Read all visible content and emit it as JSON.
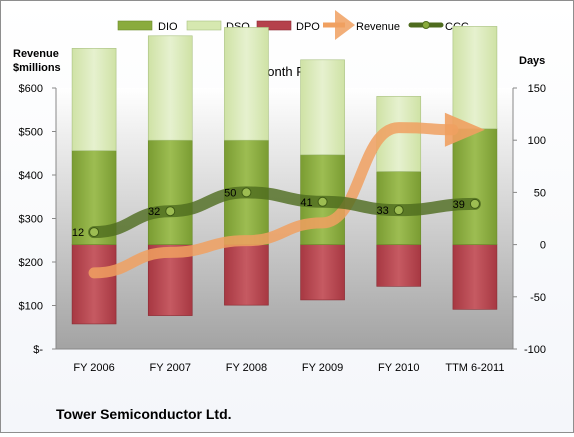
{
  "chart_data": {
    "type": "bar",
    "title": "12-Month Periods",
    "footer": "Tower Semiconductor Ltd.",
    "left_axis_label_line1": "Revenue",
    "left_axis_label_line2": "$millions",
    "right_axis_label": "Days",
    "left_ticks": [
      "$-",
      "$100",
      "$200",
      "$300",
      "$400",
      "$500",
      "$600"
    ],
    "right_ticks": [
      "-100",
      "-50",
      "0",
      "50",
      "100",
      "150"
    ],
    "categories": [
      "FY 2006",
      "FY 2007",
      "FY 2008",
      "FY 2009",
      "FY 2010",
      "TTM 6-2011"
    ],
    "left_ylim": [
      0,
      600
    ],
    "right_ylim": [
      -100,
      150
    ],
    "legend": [
      "DIO",
      "DSO",
      "DPO",
      "Revenue",
      "CCC"
    ],
    "legend_position": "top",
    "grid": false,
    "series": [
      {
        "name": "DIO",
        "axis": "right",
        "values": [
          0,
          0,
          0,
          0,
          0,
          0
        ]
      },
      {
        "name": "DSO",
        "axis": "right",
        "values": [
          0,
          0,
          0,
          0,
          0,
          0
        ]
      },
      {
        "name": "DPO",
        "axis": "right",
        "values": [
          0,
          0,
          0,
          0,
          0,
          0
        ]
      },
      {
        "name": "Revenue",
        "axis": "left",
        "values": [
          175,
          222,
          249,
          290,
          509,
          504
        ]
      },
      {
        "name": "CCC",
        "axis": "right",
        "values": [
          12,
          32,
          50,
          41,
          33,
          39
        ]
      }
    ],
    "bar_segments": [
      {
        "dio": [
          0,
          90
        ],
        "dso": [
          90,
          98
        ],
        "dpo": [
          -76,
          0
        ]
      },
      {
        "dio": [
          0,
          100
        ],
        "dso": [
          100,
          100
        ],
        "dpo": [
          -68,
          0
        ]
      },
      {
        "dio": [
          0,
          100
        ],
        "dso": [
          100,
          108
        ],
        "dpo": [
          -58,
          0
        ]
      },
      {
        "dio": [
          0,
          86
        ],
        "dso": [
          86,
          91
        ],
        "dpo": [
          -53,
          0
        ]
      },
      {
        "dio": [
          0,
          70
        ],
        "dso": [
          70,
          72
        ],
        "dpo": [
          -40,
          0
        ]
      },
      {
        "dio": [
          0,
          111
        ],
        "dso": [
          111,
          98
        ],
        "dpo": [
          -62,
          0
        ]
      }
    ],
    "ccc_labels": [
      "12",
      "32",
      "50",
      "41",
      "33",
      "39"
    ],
    "colors": {
      "dio": "#8aab3d",
      "dso": "#d6e8b0",
      "dpo": "#b5414b",
      "revenue": "#f0a060",
      "ccc": "#4e6b1e",
      "plot_top": "#ffffff",
      "plot_bottom": "#a8a8a8"
    }
  }
}
